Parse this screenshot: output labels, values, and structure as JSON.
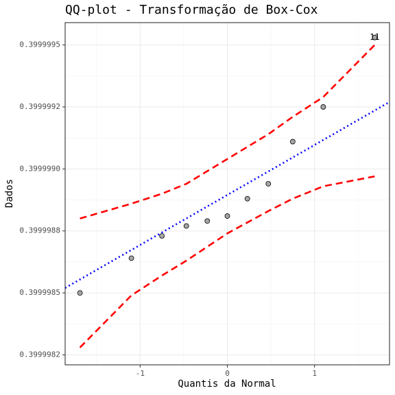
{
  "chart_data": {
    "type": "scatter",
    "title": "QQ-plot - Transformação de Box-Cox",
    "x_label": "Quantis da Normal",
    "y_label": "Dados",
    "xlim": [
      -1.86,
      1.86
    ],
    "ylim": [
      0.39999821,
      0.39999959
    ],
    "xticks": [
      -1,
      0,
      1
    ],
    "yticks": [
      {
        "value": 0.39999825,
        "label": "0.3999982"
      },
      {
        "value": 0.3999985,
        "label": "0.3999985"
      },
      {
        "value": 0.39999875,
        "label": "0.3999988"
      },
      {
        "value": 0.399999,
        "label": "0.3999990"
      },
      {
        "value": 0.39999925,
        "label": "0.3999992"
      },
      0.3999995
    ],
    "grid": true,
    "points": {
      "color": "#a6a6a6",
      "x": [
        -1.69,
        -1.1,
        -0.75,
        -0.47,
        -0.23,
        0,
        0.23,
        0.47,
        0.75,
        1.1,
        1.69
      ],
      "y": [
        0.3999985,
        0.39999864,
        0.39999873,
        0.39999877,
        0.39999879,
        0.39999881,
        0.39999888,
        0.39999894,
        0.39999911,
        0.39999925,
        0.39999953
      ]
    },
    "reference_line": {
      "color": "#0000ff",
      "x": [
        -1.86,
        1.86
      ],
      "y": [
        0.39999852,
        0.39999927
      ]
    },
    "upper_band": {
      "color": "#ff0000",
      "x": [
        -1.69,
        -1.1,
        -0.75,
        -0.47,
        0,
        0.47,
        0.75,
        1.1,
        1.69
      ],
      "y": [
        0.3999988,
        0.39999886,
        0.3999989,
        0.39999894,
        0.39999904,
        0.39999914,
        0.39999921,
        0.39999929,
        0.3999995
      ]
    },
    "lower_band": {
      "color": "#ff0000",
      "x": [
        -1.69,
        -1.1,
        -0.75,
        -0.47,
        0,
        0.47,
        0.75,
        1.1,
        1.69
      ],
      "y": [
        0.39999828,
        0.39999849,
        0.39999857,
        0.39999863,
        0.39999874,
        0.39999883,
        0.39999888,
        0.39999893,
        0.39999897
      ]
    },
    "annotation": {
      "text": "11",
      "x": 1.69,
      "y": 0.39999953
    }
  }
}
